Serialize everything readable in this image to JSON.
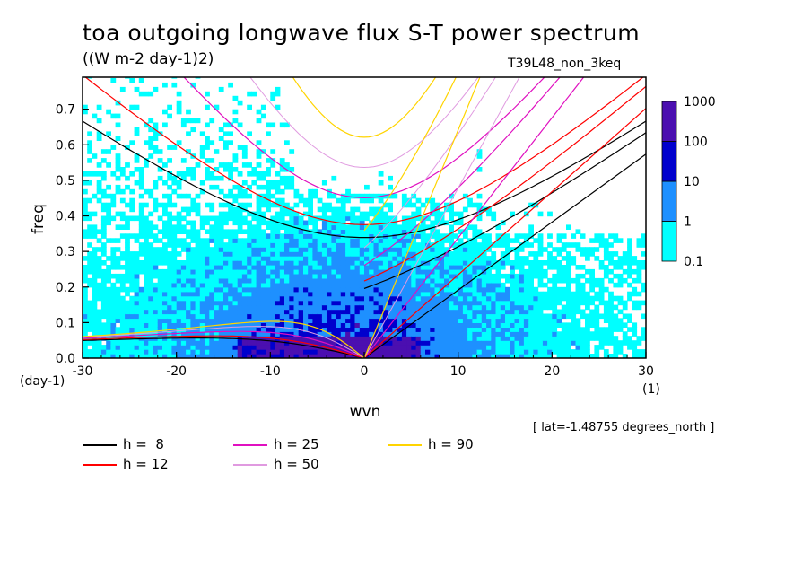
{
  "title": "toa outgoing longwave flux S-T power spectrum",
  "subtitle": "((W m-2 day-1)2)",
  "run_label": "T39L48_non_3keq",
  "footnote": "[ lat=-1.48755 degrees_north ]",
  "chart_data": {
    "type": "heatmap",
    "title": "toa outgoing longwave flux S-T power spectrum",
    "subtitle": "((W m-2 day-1)2)",
    "xlabel": "wvn",
    "ylabel": "freq",
    "x_unit": "(1)",
    "y_unit": "(day-1)",
    "xlim": [
      -30,
      30
    ],
    "ylim": [
      0,
      0.79
    ],
    "x_ticks": [
      -30,
      -20,
      -10,
      0,
      10,
      20,
      30
    ],
    "x_tick_labels": [
      "-30",
      "-20",
      "-10",
      "0",
      "10",
      "20",
      "30"
    ],
    "y_ticks": [
      0,
      0.1,
      0.2,
      0.3,
      0.4,
      0.5,
      0.6,
      0.7
    ],
    "y_tick_labels": [
      "0.0",
      "0.1",
      "0.2",
      "0.3",
      "0.4",
      "0.5",
      "0.6",
      "0.7"
    ],
    "colorbar": {
      "labels": [
        "0.1",
        "1",
        "10",
        "100",
        "1000"
      ],
      "colors": [
        "#00ffff",
        "#1e90ff",
        "#0000cd",
        "#4b0fb0"
      ]
    },
    "contour_levels_summary": "filled power contours at 0.1, 1, 10, 100; strongest power at low frequency (< 0.1) near wavenumbers -12 to 8",
    "dispersion_curves": [
      {
        "name": "h =  8",
        "color": "#000000",
        "equivalent_depth": 8
      },
      {
        "name": "h = 12",
        "color": "#ff0000",
        "equivalent_depth": 12
      },
      {
        "name": "h = 25",
        "color": "#e010c0",
        "equivalent_depth": 25
      },
      {
        "name": "h = 50",
        "color": "#e09ae0",
        "equivalent_depth": 50
      },
      {
        "name": "h = 90",
        "color": "#ffd400",
        "equivalent_depth": 90
      }
    ]
  },
  "legend": [
    {
      "label": "h =  8",
      "color": "#000000"
    },
    {
      "label": "h = 12",
      "color": "#ff0000"
    },
    {
      "label": "h = 25",
      "color": "#e010c0"
    },
    {
      "label": "h = 50",
      "color": "#e09ae0"
    },
    {
      "label": "h = 90",
      "color": "#ffd400"
    }
  ]
}
